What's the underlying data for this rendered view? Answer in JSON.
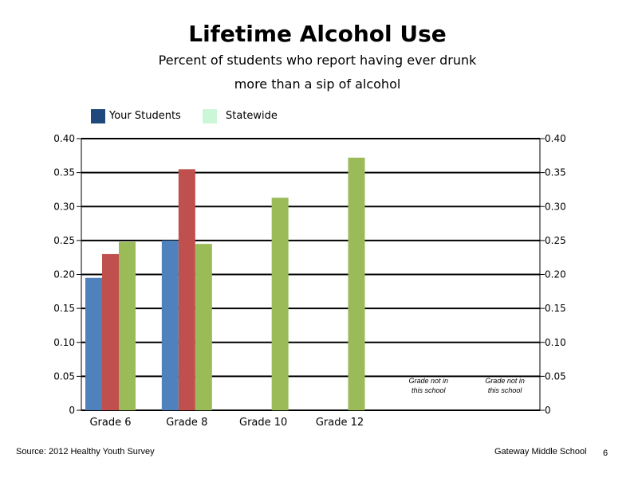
{
  "chart_data": {
    "type": "bar",
    "title": "Lifetime Alcohol Use",
    "subtitle": [
      "Percent of students who report having ever drunk",
      "more than a sip of alcohol"
    ],
    "categories": [
      "Grade 6",
      "Grade 8",
      "Grade 10",
      "Grade 12",
      "",
      ""
    ],
    "series": [
      {
        "name": "Your Students",
        "values": [
          0.195,
          0.25,
          null,
          null,
          null,
          null
        ],
        "color": "#4f81bd"
      },
      {
        "name": "",
        "values": [
          0.23,
          0.355,
          null,
          null,
          null,
          null
        ],
        "color": "#c0504d"
      },
      {
        "name": "Statewide",
        "values": [
          0.248,
          0.245,
          0.313,
          0.372,
          null,
          null
        ],
        "color": "#9bbb59"
      }
    ],
    "legend": [
      {
        "label": "Your Students",
        "color": "#1f497d"
      },
      {
        "label": "Statewide",
        "color": "#ccf7d6"
      }
    ],
    "ylim": [
      0,
      0.4
    ],
    "yticks": [
      "0",
      "0.05",
      "0.10",
      "0.15",
      "0.20",
      "0.25",
      "0.30",
      "0.35",
      "0.40"
    ],
    "ytick_values": [
      0,
      0.05,
      0.1,
      0.15,
      0.2,
      0.25,
      0.3,
      0.35,
      0.4
    ],
    "secondary_yaxis": true,
    "grid": true,
    "legend_position": "top-left",
    "annotations": [
      {
        "category_index": 4,
        "lines": [
          "Grade not in",
          "this school"
        ]
      },
      {
        "category_index": 5,
        "lines": [
          "Grade not in",
          "this school"
        ]
      }
    ]
  },
  "footer": {
    "source": "Source: 2012 Healthy Youth Survey",
    "school": "Gateway Middle  School",
    "page_number": "6"
  }
}
